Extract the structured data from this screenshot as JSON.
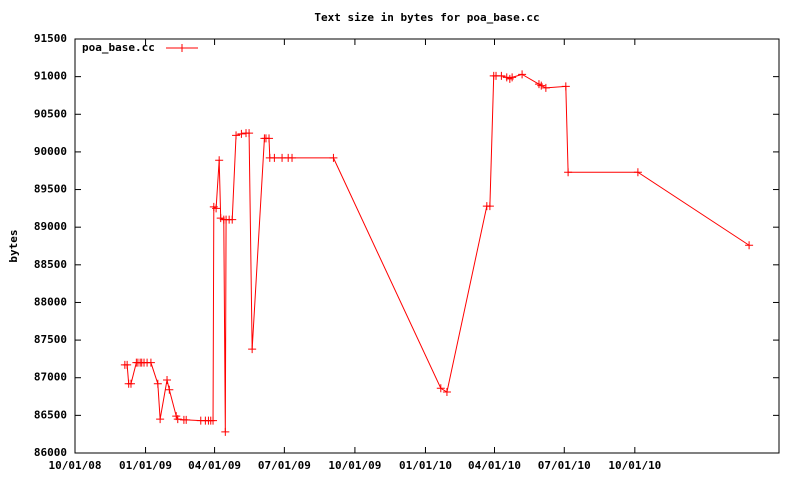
{
  "chart_data": {
    "type": "line",
    "title": "Text size in bytes for poa_base.cc",
    "y_label": "bytes",
    "x": [
      "2008-12-05",
      "2008-12-08",
      "2008-12-10",
      "2008-12-13",
      "2008-12-20",
      "2008-12-22",
      "2008-12-25",
      "2008-12-27",
      "2008-12-30",
      "2009-01-03",
      "2009-01-08",
      "2009-01-17",
      "2009-01-20",
      "2009-01-29",
      "2009-02-01",
      "2009-02-10",
      "2009-02-12",
      "2009-02-20",
      "2009-02-23",
      "2009-03-14",
      "2009-03-20",
      "2009-03-24",
      "2009-03-27",
      "2009-03-30",
      "2009-03-31",
      "2009-04-03",
      "2009-04-07",
      "2009-04-09",
      "2009-04-13",
      "2009-04-15",
      "2009-04-16",
      "2009-04-20",
      "2009-04-24",
      "2009-04-29",
      "2009-05-06",
      "2009-05-12",
      "2009-05-16",
      "2009-05-20",
      "2009-06-05",
      "2009-06-07",
      "2009-06-11",
      "2009-06-12",
      "2009-06-18",
      "2009-06-28",
      "2009-07-06",
      "2009-07-11",
      "2009-09-03",
      "2010-01-21",
      "2010-01-29",
      "2010-03-22",
      "2010-03-26",
      "2010-03-31",
      "2010-04-03",
      "2010-04-10",
      "2010-04-17",
      "2010-04-21",
      "2010-04-24",
      "2010-05-07",
      "2010-05-29",
      "2010-06-01",
      "2010-06-07",
      "2010-07-03",
      "2010-07-06",
      "2010-10-05",
      "2011-02-27"
    ],
    "series": [
      {
        "name": "poa_base.cc",
        "color": "#ff0000",
        "values": [
          87170,
          87170,
          86920,
          86920,
          87200,
          87200,
          87200,
          87200,
          87200,
          87200,
          87200,
          86920,
          86450,
          86970,
          86840,
          86490,
          86450,
          86440,
          86440,
          86430,
          86430,
          86430,
          86430,
          86430,
          89270,
          89250,
          89890,
          89120,
          89100,
          86280,
          89100,
          89100,
          89100,
          90220,
          90240,
          90250,
          90250,
          87380,
          90180,
          90180,
          90180,
          89920,
          89920,
          89920,
          89920,
          89920,
          89920,
          86860,
          86810,
          89280,
          89280,
          91010,
          91010,
          91010,
          90990,
          90970,
          90990,
          91030,
          90900,
          90880,
          90850,
          90870,
          89730,
          89730,
          88760
        ]
      }
    ],
    "xlim": [
      "2008-10-01",
      "2011-04-07"
    ],
    "xticks": [
      {
        "value": "2008-10-01",
        "label": "10/01/08"
      },
      {
        "value": "2009-01-01",
        "label": "01/01/09"
      },
      {
        "value": "2009-04-01",
        "label": "04/01/09"
      },
      {
        "value": "2009-07-01",
        "label": "07/01/09"
      },
      {
        "value": "2009-10-01",
        "label": "10/01/09"
      },
      {
        "value": "2010-01-01",
        "label": "01/01/10"
      },
      {
        "value": "2010-04-01",
        "label": "04/01/10"
      },
      {
        "value": "2010-07-01",
        "label": "07/01/10"
      },
      {
        "value": "2010-10-01",
        "label": "10/01/10"
      }
    ],
    "ylim": [
      86000,
      91500
    ],
    "yticks": [
      86000,
      86500,
      87000,
      87500,
      88000,
      88500,
      89000,
      89500,
      90000,
      90500,
      91000,
      91500
    ],
    "legend": "top-left"
  }
}
